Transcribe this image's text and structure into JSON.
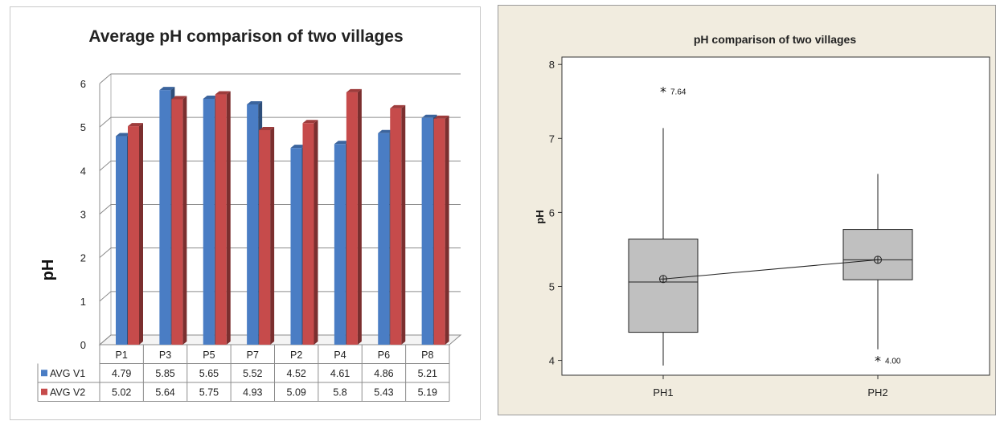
{
  "chart_data": [
    {
      "type": "bar",
      "title": "Average pH comparison of two villages",
      "ylabel": "pH",
      "ylim": [
        0,
        6
      ],
      "yticks": [
        0,
        1,
        2,
        3,
        4,
        5,
        6
      ],
      "categories": [
        "P1",
        "P3",
        "P5",
        "P7",
        "P2",
        "P4",
        "P6",
        "P8"
      ],
      "series": [
        {
          "name": "AVG V1",
          "color": "#4a7dc4",
          "values": [
            4.79,
            5.85,
            5.65,
            5.52,
            4.52,
            4.61,
            4.86,
            5.21
          ]
        },
        {
          "name": "AVG V2",
          "color": "#c64b4b",
          "values": [
            5.02,
            5.64,
            5.75,
            4.93,
            5.09,
            5.8,
            5.43,
            5.19
          ]
        }
      ],
      "grid": true,
      "legend": "data-table-below",
      "style": "3d-clustered-column"
    },
    {
      "type": "boxplot",
      "title": "pH comparison of two villages",
      "ylabel": "pH",
      "ylim": [
        3.8,
        8.1
      ],
      "yticks": [
        4,
        5,
        6,
        7,
        8
      ],
      "categories": [
        "PH1",
        "PH2"
      ],
      "boxes": [
        {
          "name": "PH1",
          "whisker_low": 3.93,
          "q1": 4.38,
          "median": 5.06,
          "q3": 5.64,
          "whisker_high": 7.14,
          "mean": 5.1,
          "outliers": [
            {
              "value": 7.64,
              "label": "7.64"
            }
          ]
        },
        {
          "name": "PH2",
          "whisker_low": 4.15,
          "q1": 5.09,
          "median": 5.36,
          "q3": 5.77,
          "whisker_high": 6.52,
          "mean": 5.36,
          "outliers": [
            {
              "value": 4.0,
              "label": "4.00"
            }
          ]
        }
      ],
      "mean_connect_line": true,
      "box_color": "#c0c0c0"
    }
  ]
}
